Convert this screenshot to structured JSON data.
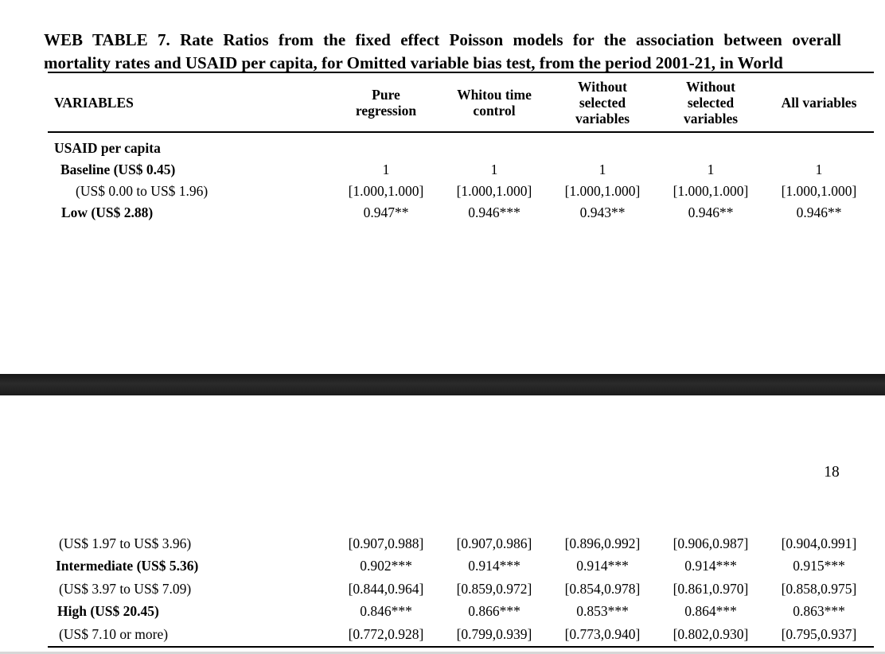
{
  "document": {
    "page_number": "18",
    "background_color": "#ffffff",
    "text_color": "#000000",
    "separator_color": "#1f1f1f",
    "bottom_edge_color": "#d7d7d7"
  },
  "title": {
    "line1": "WEB TABLE 7. Rate Ratios from the fixed effect Poisson models for the association between overall",
    "line2": "mortality rates and USAID per capita, for Omitted variable bias test, from the period 2001-21, in World"
  },
  "table": {
    "row_header": "VARIABLES",
    "columns": [
      "Pure regression",
      "Whitou time control",
      "Without selected variables",
      "Without selected variables",
      "All variables"
    ],
    "rows_page1": [
      {
        "label": "USAID per capita",
        "bold": true,
        "indent": 8,
        "values": [
          "",
          "",
          "",
          "",
          ""
        ]
      },
      {
        "label": "Baseline (US$ 0.45)",
        "bold": true,
        "indent": 16,
        "values": [
          "1",
          "1",
          "1",
          "1",
          "1"
        ]
      },
      {
        "label": "(US$ 0.00 to US$ 1.96)",
        "bold": false,
        "indent": 35,
        "values": [
          "[1.000,1.000]",
          "[1.000,1.000]",
          "[1.000,1.000]",
          "[1.000,1.000]",
          "[1.000,1.000]"
        ]
      },
      {
        "label": "Low (US$ 2.88)",
        "bold": true,
        "indent": 17,
        "values": [
          "0.947**",
          "0.946***",
          "0.943**",
          "0.946**",
          "0.946**"
        ]
      }
    ],
    "rows_page2": [
      {
        "label": "(US$ 1.97 to US$ 3.96)",
        "bold": false,
        "indent": 14,
        "values": [
          "[0.907,0.988]",
          "[0.907,0.986]",
          "[0.896,0.992]",
          "[0.906,0.987]",
          "[0.904,0.991]"
        ]
      },
      {
        "label": "Intermediate (US$ 5.36)",
        "bold": true,
        "indent": 10,
        "values": [
          "0.902***",
          "0.914***",
          "0.914***",
          "0.914***",
          "0.915***"
        ]
      },
      {
        "label": "(US$ 3.97 to US$ 7.09)",
        "bold": false,
        "indent": 14,
        "values": [
          "[0.844,0.964]",
          "[0.859,0.972]",
          "[0.854,0.978]",
          "[0.861,0.970]",
          "[0.858,0.975]"
        ]
      },
      {
        "label": "High (US$ 20.45)",
        "bold": true,
        "indent": 12,
        "values": [
          "0.846***",
          "0.866***",
          "0.853***",
          "0.864***",
          "0.863***"
        ]
      },
      {
        "label": "(US$ 7.10 or more)",
        "bold": false,
        "indent": 14,
        "values": [
          "[0.772,0.928]",
          "[0.799,0.939]",
          "[0.773,0.940]",
          "[0.802,0.930]",
          "[0.795,0.937]"
        ]
      }
    ]
  }
}
